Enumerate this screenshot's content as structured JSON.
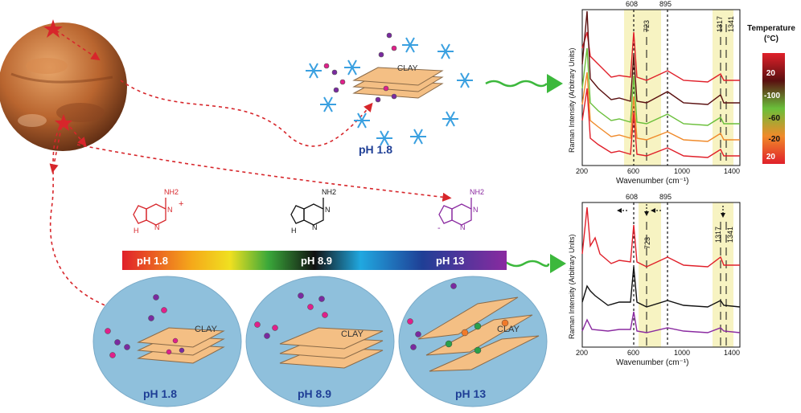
{
  "top_scene": {
    "clay_label": "CLAY",
    "ph_label": "pH 1.8"
  },
  "ph_bar": {
    "labels": [
      "pH 1.8",
      "pH 8.9",
      "pH 13"
    ],
    "colors": [
      "#e0202a",
      "#f5a81a",
      "#f0e020",
      "#3aa83a",
      "#111111",
      "#20a8e0",
      "#1f3f96",
      "#8a2aa0"
    ]
  },
  "molecules": [
    {
      "label": "NH2",
      "n_top": "N",
      "n_bottom": "N",
      "h": "H",
      "plus": "+",
      "color": "#d7262b"
    },
    {
      "label": "NH2",
      "n_top": "N",
      "n_bottom": "N",
      "h": "H",
      "color": "#111111"
    },
    {
      "label": "NH2",
      "n_top": "N",
      "n_bottom": "N",
      "minus": "-",
      "color": "#8a2aa0"
    }
  ],
  "circles": [
    {
      "ph_label": "pH 1.8",
      "clay_label": "CLAY"
    },
    {
      "ph_label": "pH 8.9",
      "clay_label": "CLAY"
    },
    {
      "ph_label": "pH 13",
      "clay_label": "CLAY"
    }
  ],
  "spectrum_top": {
    "ylabel": "Raman Intensity (Arbitrary Units)",
    "xlabel": "Wavenumber (cm⁻¹)",
    "ticks": [
      "200",
      "600",
      "1000",
      "1400"
    ],
    "peaks": [
      "608",
      "895",
      "723",
      "1317",
      "1341"
    ]
  },
  "spectrum_bottom": {
    "ylabel": "Raman Intensity (Arbitrary Units)",
    "xlabel": "Wavenumber (cm⁻¹)",
    "ticks": [
      "200",
      "600",
      "1000",
      "1400"
    ],
    "peaks": [
      "608",
      "895",
      "723",
      "1317",
      "1341"
    ]
  },
  "legend": {
    "title_line1": "Temperature",
    "title_line2": "(°C)",
    "values": [
      "20",
      "-100",
      "-60",
      "-20",
      "20"
    ]
  },
  "colors": {
    "mars": "#c0763c",
    "clay": "#f4bf84",
    "circle": "#8fc0dc",
    "snowflake": "#3aa0e0",
    "highlight": "#f7f3c2",
    "arrow_red": "#d7262b",
    "arrow_green": "#3cb83c"
  }
}
